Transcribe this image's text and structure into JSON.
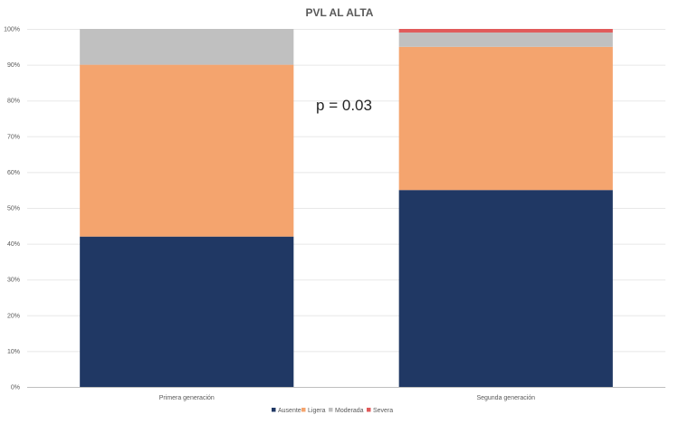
{
  "chart_data": {
    "type": "bar",
    "stacked": true,
    "title": "PVL AL ALTA",
    "categories": [
      "Primera generación",
      "Segunda generación"
    ],
    "series": [
      {
        "name": "Ausente",
        "values": [
          42,
          55
        ],
        "color": "#203864"
      },
      {
        "name": "Ligera",
        "values": [
          48,
          40
        ],
        "color": "#f4a46e"
      },
      {
        "name": "Moderada",
        "values": [
          10,
          4
        ],
        "color": "#c0c0c0"
      },
      {
        "name": "Severa",
        "values": [
          0,
          1
        ],
        "color": "#e05a5a"
      }
    ],
    "ylim": [
      0,
      100
    ],
    "yticks": [
      "0%",
      "10%",
      "20%",
      "30%",
      "40%",
      "50%",
      "60%",
      "70%",
      "80%",
      "90%",
      "100%"
    ],
    "grid": true,
    "legend": "bottom",
    "annotation": "p = 0.03"
  }
}
